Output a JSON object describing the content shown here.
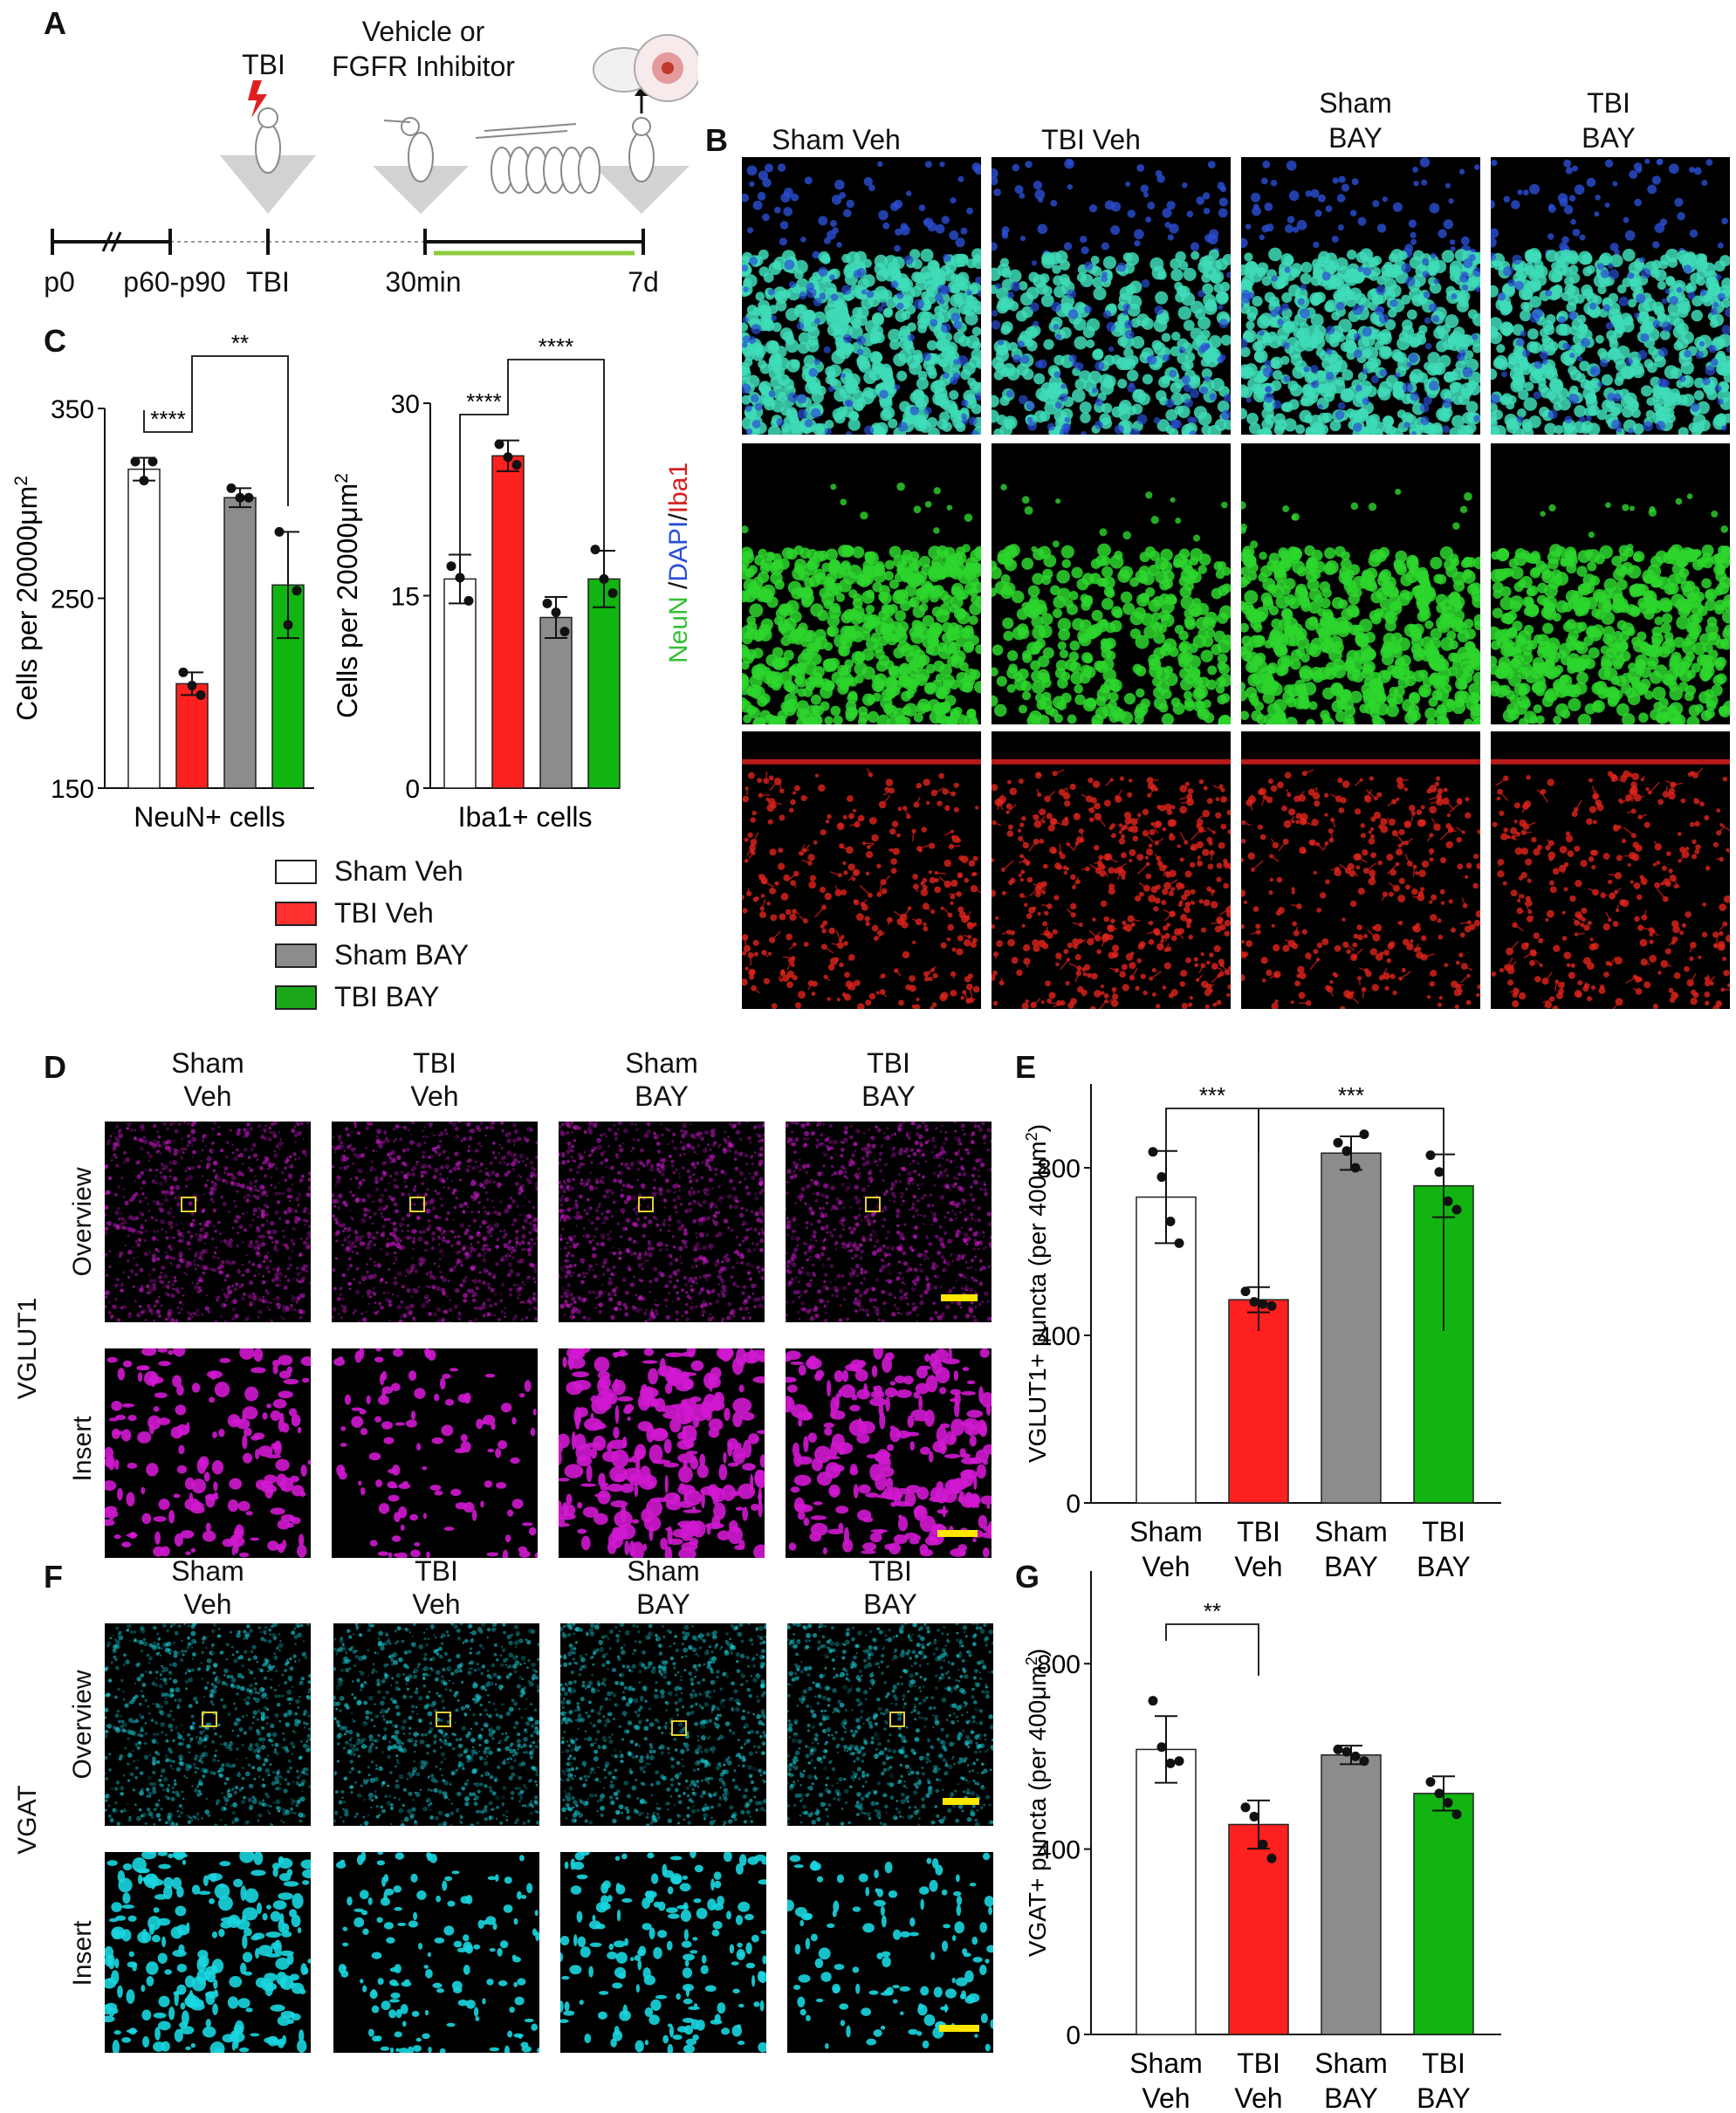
{
  "panel_letters": {
    "A": "A",
    "B": "B",
    "C": "C",
    "D": "D",
    "E": "E",
    "F": "F",
    "G": "G"
  },
  "timeline": {
    "tbi_label": "TBI",
    "treatment_label_1": "Vehicle or",
    "treatment_label_2": "FGFR Inhibitor",
    "ticks": [
      "p0",
      "p60-p90",
      "TBI",
      "30min",
      "7d"
    ]
  },
  "panel_b": {
    "columns": [
      "Sham Veh",
      "TBI Veh",
      "Sham",
      "BAY",
      "TBI",
      "BAY"
    ],
    "side_label": {
      "neun": "NeuN",
      "sep1": " /",
      "dapi": "DAPI",
      "sep2": "/",
      "iba1": "Iba1"
    }
  },
  "legend": {
    "items": [
      {
        "label": "Sham Veh",
        "color": "#ffffff"
      },
      {
        "label": "TBI Veh",
        "color": "#ff3030"
      },
      {
        "label": "Sham BAY",
        "color": "#8c8c8c"
      },
      {
        "label": "TBI BAY",
        "color": "#1aa81a"
      }
    ]
  },
  "panel_d": {
    "cols": [
      [
        "Sham",
        "Veh"
      ],
      [
        "TBI",
        "Veh"
      ],
      [
        "Sham",
        "BAY"
      ],
      [
        "TBI",
        "BAY"
      ]
    ],
    "row_labels": [
      "Overview",
      "Insert"
    ],
    "side_label": "VGLUT1"
  },
  "panel_f": {
    "cols": [
      [
        "Sham",
        "Veh"
      ],
      [
        "TBI",
        "Veh"
      ],
      [
        "Sham",
        "BAY"
      ],
      [
        "TBI",
        "BAY"
      ]
    ],
    "row_labels": [
      "Overview",
      "Insert"
    ],
    "side_label": "VGAT"
  },
  "colors": {
    "sham_veh": "#ffffff",
    "tbi_veh": "#ff2020",
    "sham_bay": "#8c8c8c",
    "tbi_bay": "#11b411",
    "neun": "#29cc29",
    "dapi": "#2a4fd4",
    "iba1": "#e0241c",
    "vglut": "#e010e0",
    "vgat": "#1ad6e0",
    "scalebar": "#ffe600"
  },
  "chart_data": [
    {
      "id": "C1",
      "type": "bar",
      "categories": [
        "Sham Veh",
        "TBI Veh",
        "Sham BAY",
        "TBI BAY"
      ],
      "values": [
        318,
        205,
        303,
        257
      ],
      "errors": [
        6,
        6,
        5,
        28
      ],
      "points": [
        [
          322,
          312,
          322
        ],
        [
          211,
          204,
          199
        ],
        [
          308,
          303,
          303
        ],
        [
          285,
          236,
          254
        ]
      ],
      "ylabel_main": "Cells per 20000μm",
      "ylabel_sup": "2",
      "xlabel": "NeuN+ cells",
      "ylim": [
        150,
        350
      ],
      "yticks": [
        "150",
        "250",
        "350"
      ],
      "sig": [
        {
          "text": "****",
          "from": 0,
          "to": 1
        },
        {
          "text": "**",
          "from": 1,
          "to": 3
        }
      ]
    },
    {
      "id": "C2",
      "type": "bar",
      "categories": [
        "Sham Veh",
        "TBI Veh",
        "Sham BAY",
        "TBI BAY"
      ],
      "values": [
        16.3,
        25.9,
        13.3,
        16.3
      ],
      "errors": [
        1.9,
        1.2,
        1.6,
        2.2
      ],
      "points": [
        [
          17.3,
          16.4,
          14.6
        ],
        [
          26.8,
          25.8,
          25.2
        ],
        [
          14.4,
          13.7,
          12.2
        ],
        [
          18.6,
          16.3,
          15.2
        ]
      ],
      "ylabel_main": "Cells per 20000μm",
      "ylabel_sup": "2",
      "xlabel": "Iba1+ cells",
      "ylim": [
        0,
        30
      ],
      "yticks": [
        "0",
        "15",
        "30"
      ],
      "sig": [
        {
          "text": "****",
          "from": 0,
          "to": 1
        },
        {
          "text": "****",
          "from": 1,
          "to": 3
        }
      ]
    },
    {
      "id": "E",
      "type": "bar",
      "categories": [
        "Sham Veh",
        "TBI Veh",
        "Sham BAY",
        "TBI BAY"
      ],
      "cat_lines": [
        [
          "Sham",
          "Veh"
        ],
        [
          "TBI",
          "Veh"
        ],
        [
          "Sham",
          "BAY"
        ],
        [
          "TBI",
          "BAY"
        ]
      ],
      "values": [
        730,
        485,
        835,
        757
      ],
      "errors": [
        110,
        30,
        40,
        75
      ],
      "points": [
        [
          838,
          778,
          672,
          620
        ],
        [
          505,
          480,
          475,
          470
        ],
        [
          860,
          840,
          800,
          880
        ],
        [
          830,
          790,
          720,
          700
        ]
      ],
      "ylabel_main": "VGLUT1+ puncta (per 400μm",
      "ylabel_sup": "2",
      "ylabel_end": ")",
      "ylim": [
        0,
        1000
      ],
      "yticks": [
        "0",
        "400",
        "800"
      ],
      "sig": [
        {
          "text": "***",
          "from": 0,
          "to": 1
        },
        {
          "text": "***",
          "from": 1,
          "to": 3
        }
      ]
    },
    {
      "id": "G",
      "type": "bar",
      "categories": [
        "Sham Veh",
        "TBI Veh",
        "Sham BAY",
        "TBI BAY"
      ],
      "cat_lines": [
        [
          "Sham",
          "Veh"
        ],
        [
          "TBI",
          "Veh"
        ],
        [
          "Sham",
          "BAY"
        ],
        [
          "TBI",
          "BAY"
        ]
      ],
      "values": [
        615,
        453,
        603,
        520
      ],
      "errors": [
        72,
        52,
        20,
        37
      ],
      "points": [
        [
          720,
          620,
          585,
          590
        ],
        [
          490,
          470,
          410,
          380
        ],
        [
          615,
          610,
          600,
          590
        ],
        [
          545,
          520,
          500,
          475
        ]
      ],
      "ylabel_main": "VGAT+ puncta (per 400μm",
      "ylabel_sup": "2",
      "ylabel_end": ")",
      "ylim": [
        0,
        1000
      ],
      "yticks": [
        "0",
        "400",
        "800"
      ],
      "sig": [
        {
          "text": "**",
          "from": 0,
          "to": 1
        }
      ]
    }
  ]
}
